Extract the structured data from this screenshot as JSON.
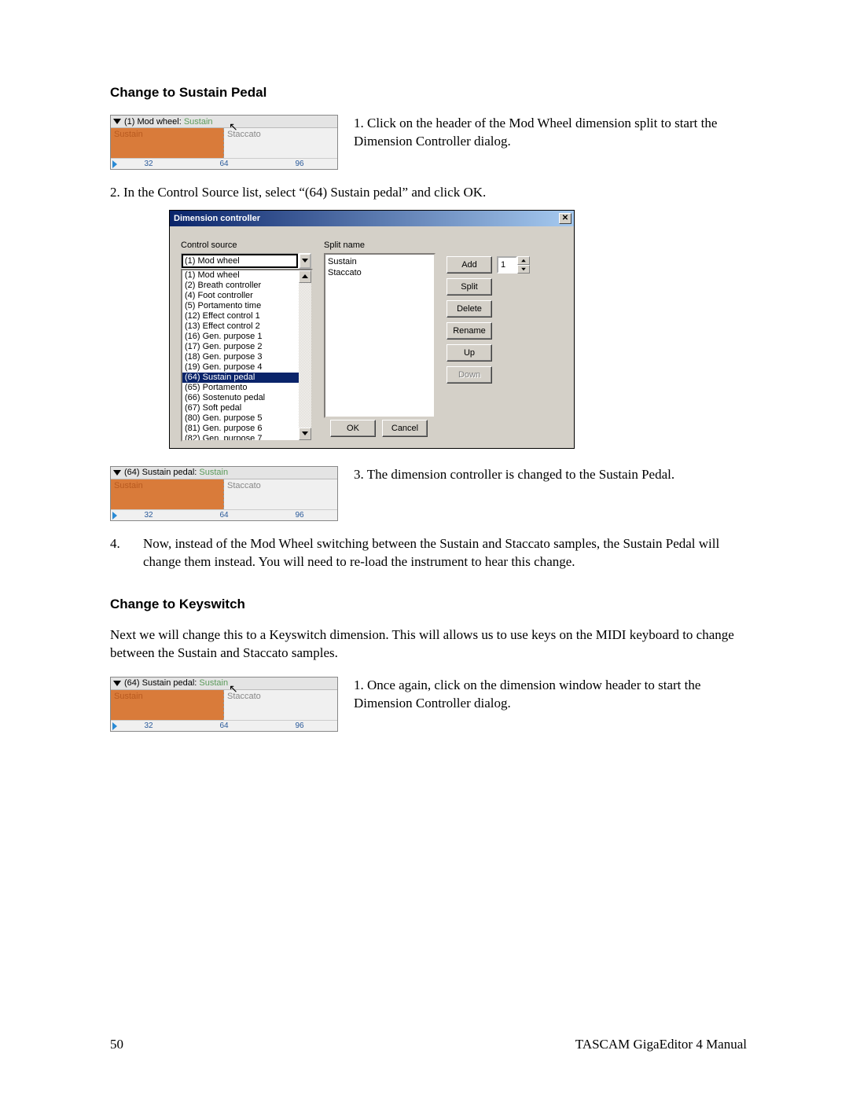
{
  "section1": {
    "heading": "Change to Sustain Pedal",
    "widget1": {
      "title": "(1) Mod wheel:",
      "title_suffix": "Sustain",
      "left_label": "Sustain",
      "right_label": "Staccato",
      "ticks": [
        "32",
        "64",
        "96"
      ]
    },
    "step1": "1. Click on the header of the Mod Wheel dimension split to start the Dimension Controller dialog.",
    "step2": "2. In the Control Source list, select “(64) Sustain pedal” and click OK."
  },
  "dialog": {
    "title": "Dimension controller",
    "control_source_label": "Control source",
    "selected": "(1) Mod wheel",
    "items": [
      "(1) Mod wheel",
      "(2) Breath controller",
      "(4) Foot controller",
      "(5) Portamento time",
      "(12) Effect control 1",
      "(13) Effect control 2",
      "(16) Gen. purpose 1",
      "(17) Gen. purpose 2",
      "(18) Gen. purpose 3",
      "(19) Gen. purpose 4",
      "(64) Sustain pedal",
      "(65) Portamento",
      "(66) Sostenuto pedal",
      "(67) Soft pedal",
      "(80) Gen. purpose 5",
      "(81) Gen. purpose 6",
      "(82) Gen. purpose 7"
    ],
    "highlight_index": 10,
    "split_name_label": "Split name",
    "split_names": [
      "Sustain",
      "Staccato"
    ],
    "buttons": {
      "add": "Add",
      "split": "Split",
      "delete": "Delete",
      "rename": "Rename",
      "up": "Up",
      "down": "Down",
      "ok": "OK",
      "cancel": "Cancel"
    },
    "spin_value": "1"
  },
  "section1b": {
    "widget2": {
      "title": "(64) Sustain pedal:",
      "title_suffix": "Sustain",
      "left_label": "Sustain",
      "right_label": "Staccato",
      "ticks": [
        "32",
        "64",
        "96"
      ]
    },
    "step3": "3. The dimension controller is changed to the Sustain Pedal.",
    "step4_num": "4.",
    "step4": "Now, instead of the Mod Wheel switching between the Sustain and Staccato samples, the Sustain Pedal will change them instead.  You will need to re-load the instrument to hear this change."
  },
  "section2": {
    "heading": "Change to Keyswitch",
    "intro": "Next we will change this to a Keyswitch dimension. This will allows us to use keys on the MIDI keyboard to change between the Sustain and Staccato samples.",
    "widget3": {
      "title": "(64) Sustain pedal:",
      "title_suffix": "Sustain",
      "left_label": "Sustain",
      "right_label": "Staccato",
      "ticks": [
        "32",
        "64",
        "96"
      ]
    },
    "step1": "1. Once again, click on the dimension window header to start the Dimension Controller dialog."
  },
  "footer": {
    "page": "50",
    "manual": "TASCAM GigaEditor 4 Manual"
  }
}
